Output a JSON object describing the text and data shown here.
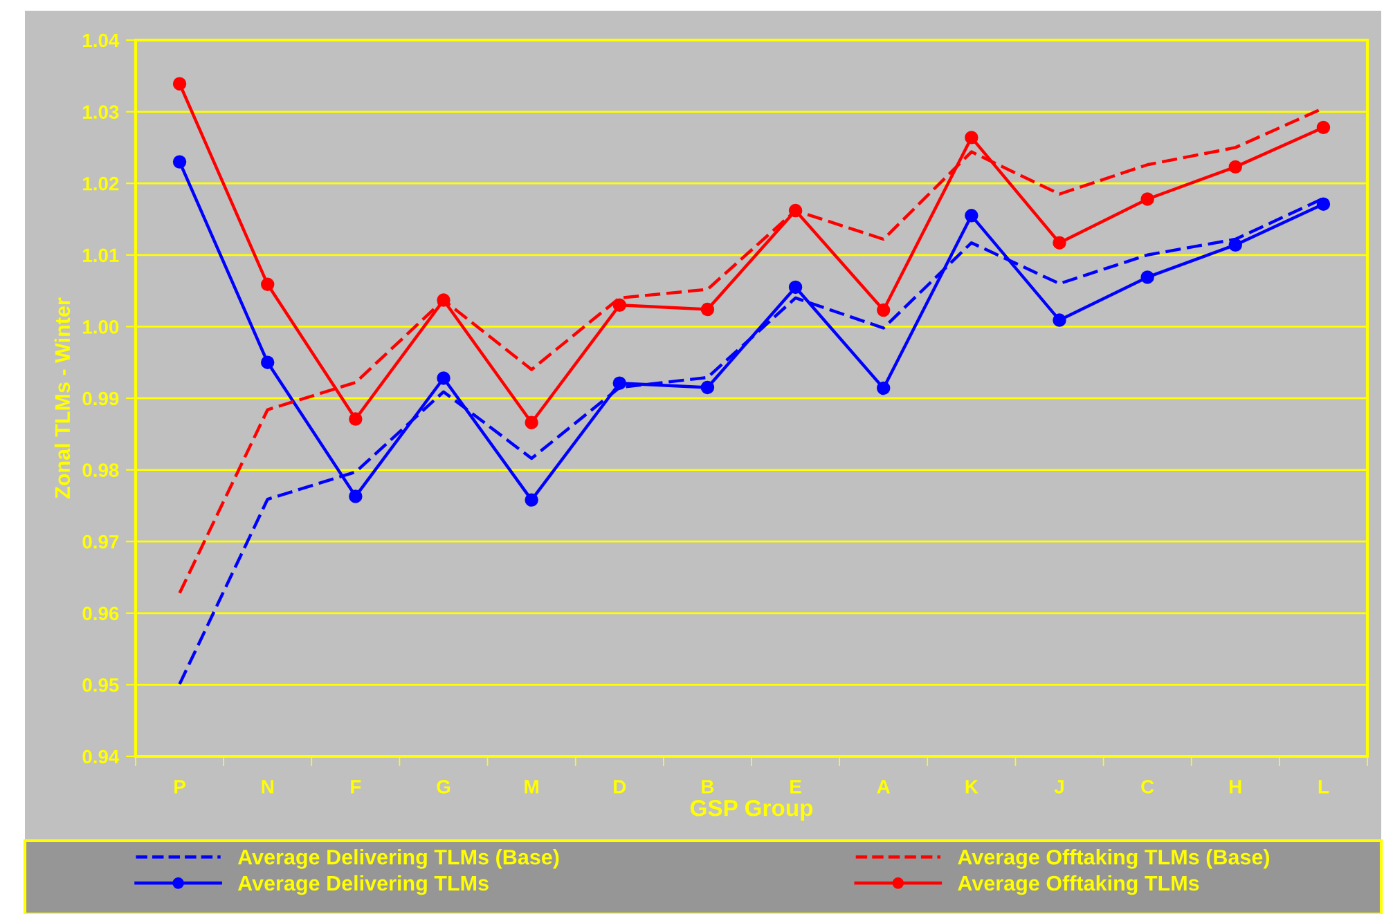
{
  "chart_data": {
    "type": "line",
    "xlabel": "GSP Group",
    "ylabel": "Zonal TLMs - Winter",
    "categories": [
      "P",
      "N",
      "F",
      "G",
      "M",
      "D",
      "B",
      "E",
      "A",
      "K",
      "J",
      "C",
      "H",
      "L"
    ],
    "series": [
      {
        "name": "Average Delivering TLMs (Base)",
        "color": "#0000ff",
        "line_style": "dashed",
        "marker": "none",
        "values": [
          0.9501,
          0.9759,
          0.9797,
          0.9909,
          0.9816,
          0.9915,
          0.9929,
          1.004,
          0.9998,
          1.0117,
          1.006,
          1.01,
          1.0122,
          1.0179
        ]
      },
      {
        "name": "Average Delivering TLMs",
        "color": "#0000ff",
        "line_style": "solid",
        "marker": "circle",
        "values": [
          1.023,
          0.995,
          0.9763,
          0.9928,
          0.9758,
          0.9921,
          0.9915,
          1.0055,
          0.9914,
          1.0155,
          1.0009,
          1.0069,
          1.0114,
          1.0171
        ]
      },
      {
        "name": "Average Offtaking TLMs (Base)",
        "color": "#ff0000",
        "line_style": "dashed",
        "marker": "none",
        "values": [
          0.9628,
          0.9884,
          0.9922,
          1.0037,
          0.994,
          1.004,
          1.0052,
          1.0162,
          1.0122,
          1.0244,
          1.0185,
          1.0226,
          1.025,
          1.0305
        ]
      },
      {
        "name": "Average Offtaking TLMs",
        "color": "#ff0000",
        "line_style": "solid",
        "marker": "circle",
        "values": [
          1.0339,
          1.0059,
          0.9871,
          1.0037,
          0.9866,
          1.003,
          1.0024,
          1.0162,
          1.0023,
          1.0264,
          1.0117,
          1.0178,
          1.0223,
          1.0278
        ]
      }
    ],
    "ylim": [
      0.94,
      1.04
    ],
    "yticks": [
      0.94,
      0.95,
      0.96,
      0.97,
      0.98,
      0.99,
      {
        "value": 1.0,
        "label": "1.00"
      },
      1.01,
      1.02,
      1.03,
      1.04
    ],
    "grid": "y",
    "legend": "bottom"
  }
}
